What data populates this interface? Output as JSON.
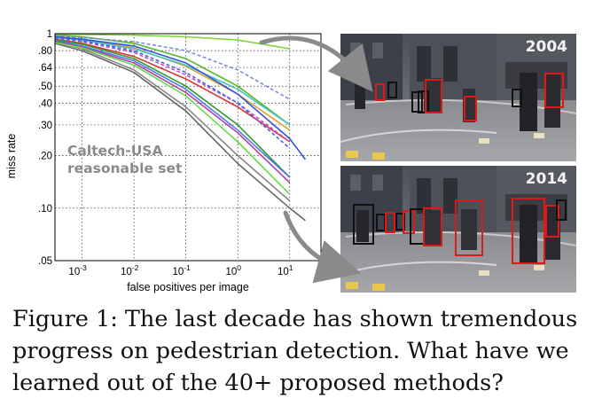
{
  "chart_data": {
    "type": "line",
    "title": "",
    "xlabel": "false positives per image",
    "ylabel": "miss rate",
    "annotation": [
      "Caltech-USA",
      "reasonable set"
    ],
    "x_scale": "log",
    "y_scale": "log",
    "xlim": [
      0.0003,
      40
    ],
    "ylim": [
      0.05,
      1
    ],
    "grid": true,
    "x_ticks": [
      0.001,
      0.01,
      0.1,
      1,
      10
    ],
    "x_tick_labels": [
      "10-3",
      "10-2",
      "10-1",
      "100",
      "101"
    ],
    "y_ticks": [
      1,
      0.8,
      0.64,
      0.5,
      0.4,
      0.3,
      0.2,
      0.1,
      0.05
    ],
    "y_tick_labels": [
      "1",
      ".80",
      ".64",
      ".50",
      ".40",
      ".30",
      ".20",
      ".10",
      ".05"
    ],
    "series": [
      {
        "color": "#7fd63a",
        "style": "solid",
        "x": [
          0.0003,
          0.001,
          0.01,
          0.1,
          1,
          10
        ],
        "y": [
          0.99,
          0.99,
          0.98,
          0.96,
          0.92,
          0.82
        ]
      },
      {
        "color": "#55b82a",
        "style": "solid",
        "x": [
          0.0003,
          0.001,
          0.01,
          0.1,
          1,
          10
        ],
        "y": [
          0.98,
          0.96,
          0.88,
          0.72,
          0.5,
          0.3
        ]
      },
      {
        "color": "#7a8cd8",
        "style": "dashed",
        "x": [
          0.0003,
          0.001,
          0.01,
          0.1,
          1,
          10
        ],
        "y": [
          0.97,
          0.95,
          0.9,
          0.8,
          0.62,
          0.42
        ]
      },
      {
        "color": "#e0a030",
        "style": "solid",
        "x": [
          0.0003,
          0.001,
          0.01,
          0.1,
          1,
          10
        ],
        "y": [
          0.96,
          0.93,
          0.83,
          0.65,
          0.45,
          0.28
        ]
      },
      {
        "color": "#44c4c4",
        "style": "solid",
        "x": [
          0.0003,
          0.001,
          0.01,
          0.1,
          1,
          10
        ],
        "y": [
          0.95,
          0.92,
          0.82,
          0.66,
          0.48,
          0.3
        ]
      },
      {
        "color": "#3355dd",
        "style": "solid",
        "x": [
          0.0003,
          0.001,
          0.01,
          0.1,
          1,
          10,
          20
        ],
        "y": [
          0.96,
          0.93,
          0.85,
          0.68,
          0.45,
          0.25,
          0.19
        ]
      },
      {
        "color": "#dd3333",
        "style": "solid",
        "x": [
          0.0003,
          0.001,
          0.01,
          0.1,
          1,
          10
        ],
        "y": [
          0.93,
          0.88,
          0.74,
          0.55,
          0.38,
          0.24
        ]
      },
      {
        "color": "#c050c0",
        "style": "dashed",
        "x": [
          0.0003,
          0.001,
          0.01,
          0.1,
          1,
          10
        ],
        "y": [
          0.94,
          0.9,
          0.78,
          0.58,
          0.4,
          0.24
        ]
      },
      {
        "color": "#2a9d2a",
        "style": "solid",
        "x": [
          0.0003,
          0.001,
          0.01,
          0.1,
          1,
          10
        ],
        "y": [
          0.92,
          0.87,
          0.72,
          0.5,
          0.3,
          0.15
        ]
      },
      {
        "color": "#4466ee",
        "style": "dashed",
        "x": [
          0.0003,
          0.001,
          0.01,
          0.1,
          1,
          10
        ],
        "y": [
          0.95,
          0.91,
          0.8,
          0.6,
          0.4,
          0.22
        ]
      },
      {
        "color": "#888888",
        "style": "solid",
        "x": [
          0.0003,
          0.001,
          0.01,
          0.1,
          1,
          10
        ],
        "y": [
          0.9,
          0.82,
          0.62,
          0.38,
          0.2,
          0.11
        ]
      },
      {
        "color": "#666666",
        "style": "solid",
        "x": [
          0.0003,
          0.001,
          0.01,
          0.1,
          1,
          10,
          20
        ],
        "y": [
          0.88,
          0.8,
          0.6,
          0.36,
          0.18,
          0.1,
          0.085
        ]
      },
      {
        "color": "#5577ee",
        "style": "solid",
        "x": [
          0.0003,
          0.001,
          0.01,
          0.1,
          1,
          10
        ],
        "y": [
          0.91,
          0.85,
          0.7,
          0.48,
          0.28,
          0.15
        ]
      },
      {
        "color": "#aa44aa",
        "style": "solid",
        "x": [
          0.0003,
          0.001,
          0.01,
          0.1,
          1,
          10
        ],
        "y": [
          0.9,
          0.84,
          0.68,
          0.46,
          0.27,
          0.14
        ]
      },
      {
        "color": "#66dd44",
        "style": "solid",
        "x": [
          0.0003,
          0.001,
          0.01,
          0.1,
          1,
          10
        ],
        "y": [
          0.89,
          0.83,
          0.66,
          0.44,
          0.24,
          0.12
        ]
      }
    ]
  },
  "photos": [
    {
      "year": "2004",
      "boxes_red": 4,
      "boxes_black": 4
    },
    {
      "year": "2014",
      "boxes_red": 6,
      "boxes_black": 5
    }
  ],
  "colors": {
    "annotation": "#8a8a8a",
    "arrow": "#8a8a8a",
    "box_red": "#e01818",
    "box_black": "#111111"
  },
  "caption": {
    "line1": "Figure 1: The last decade has shown tremendous",
    "line2": "progress on pedestrian detection. What have we",
    "line3": "learned out of the 40+ proposed methods?"
  }
}
